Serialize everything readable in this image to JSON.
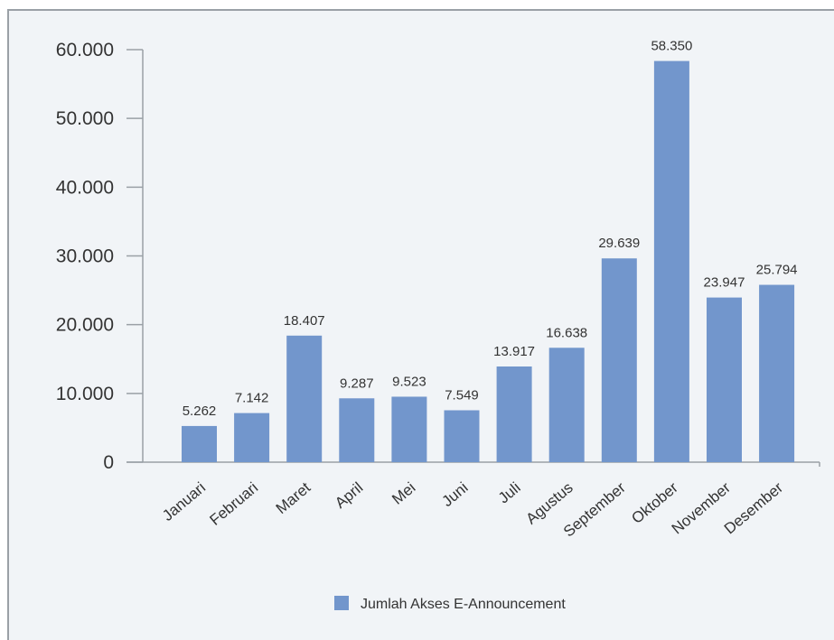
{
  "chart_data": {
    "type": "bar",
    "categories": [
      "Januari",
      "Februari",
      "Maret",
      "April",
      "Mei",
      "Juni",
      "Juli",
      "Agustus",
      "September",
      "Oktober",
      "November",
      "Desember"
    ],
    "series": [
      {
        "name": "Jumlah Akses E-Announcement",
        "values": [
          5262,
          7142,
          18407,
          9287,
          9523,
          7549,
          13917,
          16638,
          29639,
          58350,
          23947,
          25794
        ],
        "value_labels": [
          "5.262",
          "7.142",
          "18.407",
          "9.287",
          "9.523",
          "7.549",
          "13.917",
          "16.638",
          "29.639",
          "58.350",
          "23.947",
          "25.794"
        ],
        "color": "#7296cc"
      }
    ],
    "y_ticks": [
      0,
      10000,
      20000,
      30000,
      40000,
      50000,
      60000
    ],
    "y_tick_labels": [
      "0",
      "10.000",
      "20.000",
      "30.000",
      "40.000",
      "50.000",
      "60.000"
    ],
    "ylim": [
      0,
      60000
    ],
    "grid": false,
    "legend_position": "bottom-center",
    "axis_color": "#9aa0a6"
  }
}
